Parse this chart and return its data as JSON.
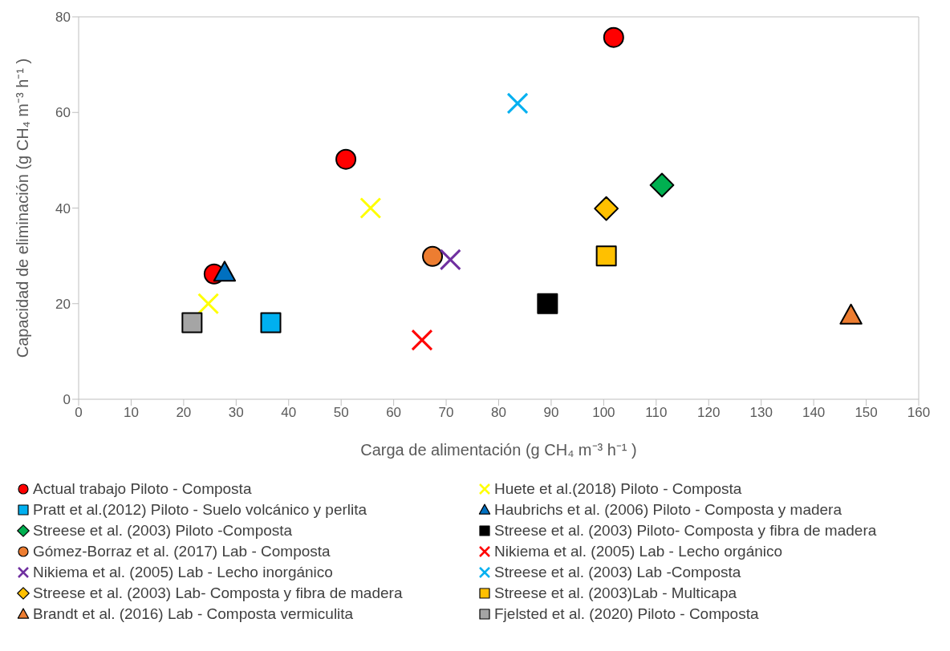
{
  "chart_data": {
    "type": "scatter",
    "xlabel": "Carga de alimentación (g CH₄ m⁻³ h⁻¹ )",
    "ylabel": "Capacidad de eliminación (g CH₄ m⁻³ h⁻¹ )",
    "xlim": [
      0,
      160
    ],
    "xticks": [
      0,
      10,
      20,
      30,
      40,
      50,
      60,
      70,
      80,
      90,
      100,
      110,
      120,
      130,
      140,
      150,
      160
    ],
    "ylim": [
      0,
      80
    ],
    "yticks": [
      0,
      20,
      40,
      60,
      80
    ],
    "grid": false,
    "legend": "bottom",
    "series": [
      {
        "name": "Actual trabajo Piloto - Composta",
        "color": "#ff0000",
        "marker": "circle",
        "x": [
          25.8,
          50.9,
          101.9
        ],
        "values": [
          26.2,
          50.2,
          75.7
        ]
      },
      {
        "name": "Huete et al.(2018) Piloto - Composta",
        "color": "#ffff00",
        "marker": "cross",
        "x": [
          24.7,
          55.6
        ],
        "values": [
          20,
          40
        ]
      },
      {
        "name": "Pratt et al.(2012) Piloto - Suelo volcánico y perlita",
        "color": "#00b0f0",
        "marker": "square",
        "x": [
          36.6
        ],
        "values": [
          16
        ]
      },
      {
        "name": "Haubrichs et al. (2006) Piloto - Composta y madera",
        "color": "#0070c0",
        "marker": "triangle",
        "x": [
          27.8
        ],
        "values": [
          26.5
        ]
      },
      {
        "name": "Streese et al. (2003) Piloto  -Composta",
        "color": "#00b050",
        "marker": "diamond",
        "x": [
          111.1
        ],
        "values": [
          44.8
        ]
      },
      {
        "name": "Streese et al. (2003) Piloto- Composta y fibra de madera",
        "color": "#000000",
        "marker": "square",
        "x": [
          89.3
        ],
        "values": [
          20
        ]
      },
      {
        "name": "Gómez-Borraz et al. (2017) Lab - Composta",
        "color": "#ed7d31",
        "marker": "circle",
        "x": [
          67.4
        ],
        "values": [
          29.9
        ]
      },
      {
        "name": "Nikiema et al. (2005) Lab - Lecho orgánico",
        "color": "#ff0000",
        "marker": "cross",
        "x": [
          65.4
        ],
        "values": [
          12.4
        ]
      },
      {
        "name": "Nikiema et al. (2005) Lab - Lecho inorgánico",
        "color": "#7030a0",
        "marker": "cross",
        "x": [
          70.8
        ],
        "values": [
          29.2
        ]
      },
      {
        "name": "Streese et al. (2003) Lab -Composta",
        "color": "#00b0f0",
        "marker": "cross",
        "x": [
          83.6
        ],
        "values": [
          61.9
        ]
      },
      {
        "name": "Streese et al. (2003) Lab- Composta y fibra de madera",
        "color": "#ffc000",
        "marker": "diamond",
        "x": [
          100.5
        ],
        "values": [
          39.9
        ]
      },
      {
        "name": "Streese et al. (2003)Lab - Multicapa",
        "color": "#ffc000",
        "marker": "square",
        "x": [
          100.5
        ],
        "values": [
          30
        ]
      },
      {
        "name": "Brandt et al. (2016) Lab - Composta vermiculita",
        "color": "#ed7d31",
        "marker": "triangle",
        "x": [
          147.1
        ],
        "values": [
          17.5
        ]
      },
      {
        "name": "Fjelsted et al. (2020) Piloto - Composta",
        "color": "#a5a5a5",
        "marker": "square",
        "x": [
          21.6
        ],
        "values": [
          16
        ]
      }
    ]
  }
}
